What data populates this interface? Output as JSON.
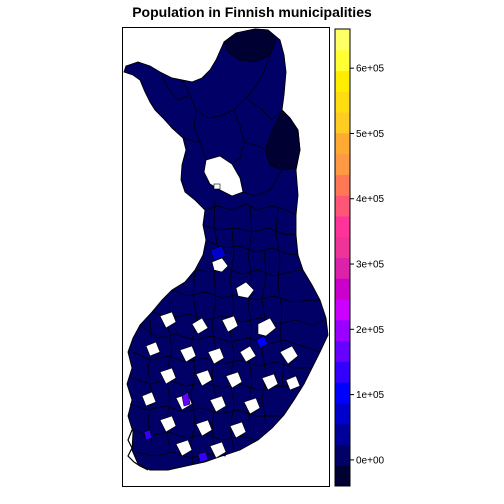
{
  "title": "Population in Finnish municipalities",
  "colorbar": {
    "ticks": [
      {
        "value": 0,
        "label": "0e+00"
      },
      {
        "value": 100000,
        "label": "1e+05"
      },
      {
        "value": 200000,
        "label": "2e+05"
      },
      {
        "value": 300000,
        "label": "3e+05"
      },
      {
        "value": 400000,
        "label": "4e+05"
      },
      {
        "value": 500000,
        "label": "5e+05"
      },
      {
        "value": 600000,
        "label": "6e+05"
      }
    ],
    "range": [
      -40000,
      660000
    ],
    "colors": [
      "#000033",
      "#000066",
      "#000099",
      "#0000CC",
      "#0000FF",
      "#3300FF",
      "#6600FF",
      "#9900FF",
      "#CC00FF",
      "#CC00CC",
      "#DD22AA",
      "#EE3399",
      "#FF3399",
      "#FF5577",
      "#FF7755",
      "#FF9944",
      "#FFAA33",
      "#FFCC22",
      "#FFDD11",
      "#FFEE00",
      "#FFFF33",
      "#FFFF66"
    ]
  },
  "map": {
    "region": "Finland",
    "base_color": "#000066",
    "border_color": "#000000",
    "highlight_colors": [
      "#3300FF",
      "#6600FF",
      "#0000CC"
    ]
  }
}
